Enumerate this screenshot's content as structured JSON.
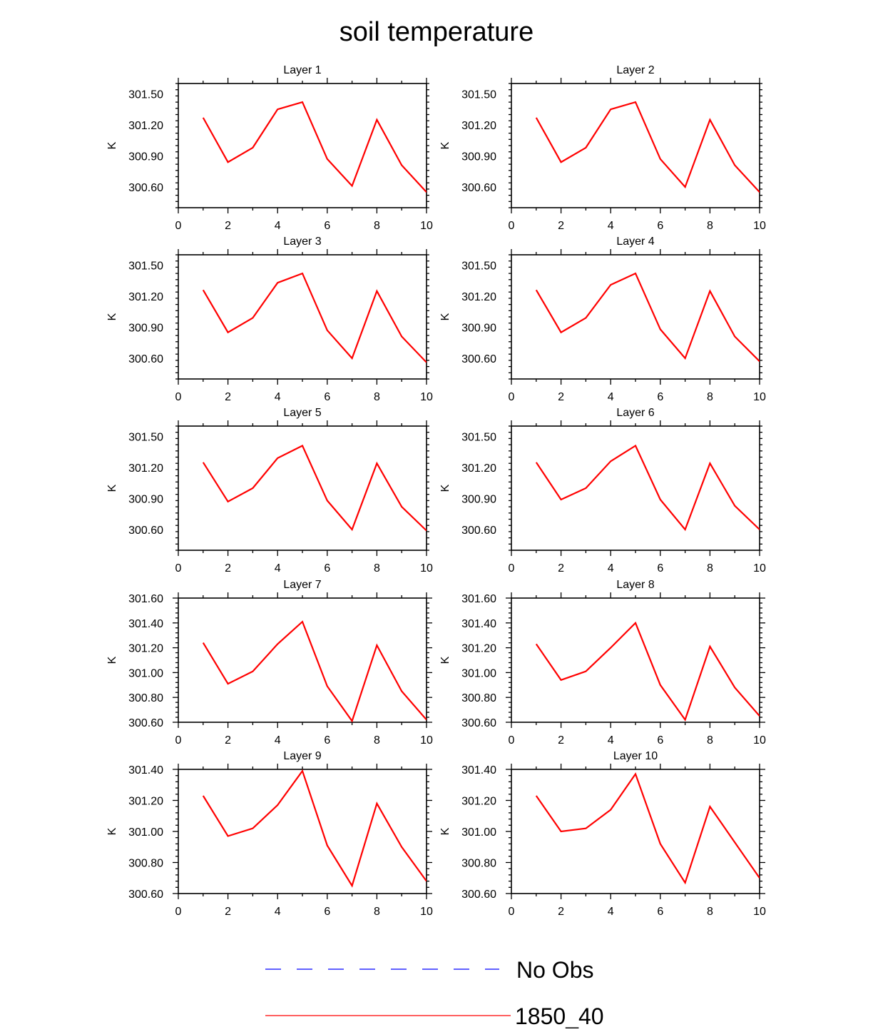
{
  "page_title": "soil temperature",
  "legend": [
    {
      "label": "No Obs",
      "color": "#0000ff",
      "dash": true
    },
    {
      "label": "1850_40",
      "color": "#ff0000",
      "dash": false
    }
  ],
  "chart_data": [
    {
      "type": "line",
      "title": "Layer 1",
      "ylabel": "K",
      "xlim": [
        0,
        10
      ],
      "ylim": [
        300.4,
        301.6
      ],
      "xticks": [
        0,
        2,
        4,
        6,
        8,
        10
      ],
      "yticks": [
        300.6,
        300.9,
        301.2,
        301.5
      ],
      "ytick_labels": [
        "300.60",
        "300.90",
        "301.20",
        "301.50"
      ],
      "series": [
        {
          "name": "1850_40",
          "color": "#ff0000",
          "x": [
            1,
            2,
            3,
            4,
            5,
            6,
            7,
            8,
            9,
            10
          ],
          "y": [
            301.27,
            300.84,
            300.98,
            301.35,
            301.42,
            300.87,
            300.61,
            301.25,
            300.81,
            300.55
          ]
        }
      ]
    },
    {
      "type": "line",
      "title": "Layer 2",
      "ylabel": "K",
      "xlim": [
        0,
        10
      ],
      "ylim": [
        300.4,
        301.6
      ],
      "xticks": [
        0,
        2,
        4,
        6,
        8,
        10
      ],
      "yticks": [
        300.6,
        300.9,
        301.2,
        301.5
      ],
      "ytick_labels": [
        "300.60",
        "300.90",
        "301.20",
        "301.50"
      ],
      "series": [
        {
          "name": "1850_40",
          "color": "#ff0000",
          "x": [
            1,
            2,
            3,
            4,
            5,
            6,
            7,
            8,
            9,
            10
          ],
          "y": [
            301.27,
            300.84,
            300.98,
            301.35,
            301.42,
            300.87,
            300.6,
            301.25,
            300.81,
            300.55
          ]
        }
      ]
    },
    {
      "type": "line",
      "title": "Layer 3",
      "ylabel": "K",
      "xlim": [
        0,
        10
      ],
      "ylim": [
        300.4,
        301.6
      ],
      "xticks": [
        0,
        2,
        4,
        6,
        8,
        10
      ],
      "yticks": [
        300.6,
        300.9,
        301.2,
        301.5
      ],
      "ytick_labels": [
        "300.60",
        "300.90",
        "301.20",
        "301.50"
      ],
      "series": [
        {
          "name": "1850_40",
          "color": "#ff0000",
          "x": [
            1,
            2,
            3,
            4,
            5,
            6,
            7,
            8,
            9,
            10
          ],
          "y": [
            301.26,
            300.85,
            300.99,
            301.33,
            301.42,
            300.87,
            300.6,
            301.25,
            300.81,
            300.56
          ]
        }
      ]
    },
    {
      "type": "line",
      "title": "Layer 4",
      "ylabel": "K",
      "xlim": [
        0,
        10
      ],
      "ylim": [
        300.4,
        301.6
      ],
      "xticks": [
        0,
        2,
        4,
        6,
        8,
        10
      ],
      "yticks": [
        300.6,
        300.9,
        301.2,
        301.5
      ],
      "ytick_labels": [
        "300.60",
        "300.90",
        "301.20",
        "301.50"
      ],
      "series": [
        {
          "name": "1850_40",
          "color": "#ff0000",
          "x": [
            1,
            2,
            3,
            4,
            5,
            6,
            7,
            8,
            9,
            10
          ],
          "y": [
            301.26,
            300.85,
            300.99,
            301.31,
            301.42,
            300.88,
            300.6,
            301.25,
            300.81,
            300.57
          ]
        }
      ]
    },
    {
      "type": "line",
      "title": "Layer 5",
      "ylabel": "K",
      "xlim": [
        0,
        10
      ],
      "ylim": [
        300.4,
        301.6
      ],
      "xticks": [
        0,
        2,
        4,
        6,
        8,
        10
      ],
      "yticks": [
        300.6,
        300.9,
        301.2,
        301.5
      ],
      "ytick_labels": [
        "300.60",
        "300.90",
        "301.20",
        "301.50"
      ],
      "series": [
        {
          "name": "1850_40",
          "color": "#ff0000",
          "x": [
            1,
            2,
            3,
            4,
            5,
            6,
            7,
            8,
            9,
            10
          ],
          "y": [
            301.25,
            300.87,
            301.0,
            301.29,
            301.41,
            300.88,
            300.6,
            301.24,
            300.82,
            300.59
          ]
        }
      ]
    },
    {
      "type": "line",
      "title": "Layer 6",
      "ylabel": "K",
      "xlim": [
        0,
        10
      ],
      "ylim": [
        300.4,
        301.6
      ],
      "xticks": [
        0,
        2,
        4,
        6,
        8,
        10
      ],
      "yticks": [
        300.6,
        300.9,
        301.2,
        301.5
      ],
      "ytick_labels": [
        "300.60",
        "300.90",
        "301.20",
        "301.50"
      ],
      "series": [
        {
          "name": "1850_40",
          "color": "#ff0000",
          "x": [
            1,
            2,
            3,
            4,
            5,
            6,
            7,
            8,
            9,
            10
          ],
          "y": [
            301.25,
            300.89,
            301.0,
            301.26,
            301.41,
            300.89,
            300.6,
            301.24,
            300.83,
            300.6
          ]
        }
      ]
    },
    {
      "type": "line",
      "title": "Layer 7",
      "ylabel": "K",
      "xlim": [
        0,
        10
      ],
      "ylim": [
        300.6,
        301.6
      ],
      "xticks": [
        0,
        2,
        4,
        6,
        8,
        10
      ],
      "yticks": [
        300.6,
        300.8,
        301.0,
        301.2,
        301.4,
        301.6
      ],
      "ytick_labels": [
        "300.60",
        "300.80",
        "301.00",
        "301.20",
        "301.40",
        "301.60"
      ],
      "series": [
        {
          "name": "1850_40",
          "color": "#ff0000",
          "x": [
            1,
            2,
            3,
            4,
            5,
            6,
            7,
            8,
            9,
            10
          ],
          "y": [
            301.24,
            300.91,
            301.01,
            301.23,
            301.41,
            300.89,
            300.61,
            301.22,
            300.85,
            300.62
          ]
        }
      ]
    },
    {
      "type": "line",
      "title": "Layer 8",
      "ylabel": "K",
      "xlim": [
        0,
        10
      ],
      "ylim": [
        300.6,
        301.6
      ],
      "xticks": [
        0,
        2,
        4,
        6,
        8,
        10
      ],
      "yticks": [
        300.6,
        300.8,
        301.0,
        301.2,
        301.4,
        301.6
      ],
      "ytick_labels": [
        "300.60",
        "300.80",
        "301.00",
        "301.20",
        "301.40",
        "301.60"
      ],
      "series": [
        {
          "name": "1850_40",
          "color": "#ff0000",
          "x": [
            1,
            2,
            3,
            4,
            5,
            6,
            7,
            8,
            9,
            10
          ],
          "y": [
            301.23,
            300.94,
            301.01,
            301.2,
            301.4,
            300.9,
            300.62,
            301.21,
            300.88,
            300.65
          ]
        }
      ]
    },
    {
      "type": "line",
      "title": "Layer 9",
      "ylabel": "K",
      "xlim": [
        0,
        10
      ],
      "ylim": [
        300.6,
        301.4
      ],
      "xticks": [
        0,
        2,
        4,
        6,
        8,
        10
      ],
      "yticks": [
        300.6,
        300.8,
        301.0,
        301.2,
        301.4
      ],
      "ytick_labels": [
        "300.60",
        "300.80",
        "301.00",
        "301.20",
        "301.40"
      ],
      "series": [
        {
          "name": "1850_40",
          "color": "#ff0000",
          "x": [
            1,
            2,
            3,
            4,
            5,
            6,
            7,
            8,
            9,
            10
          ],
          "y": [
            301.23,
            300.97,
            301.02,
            301.17,
            301.39,
            300.91,
            300.65,
            301.18,
            300.9,
            300.68
          ]
        }
      ]
    },
    {
      "type": "line",
      "title": "Layer 10",
      "ylabel": "K",
      "xlim": [
        0,
        10
      ],
      "ylim": [
        300.6,
        301.4
      ],
      "xticks": [
        0,
        2,
        4,
        6,
        8,
        10
      ],
      "yticks": [
        300.6,
        300.8,
        301.0,
        301.2,
        301.4
      ],
      "ytick_labels": [
        "300.60",
        "300.80",
        "301.00",
        "301.20",
        "301.40"
      ],
      "series": [
        {
          "name": "1850_40",
          "color": "#ff0000",
          "x": [
            1,
            2,
            3,
            4,
            5,
            6,
            7,
            8,
            9,
            10
          ],
          "y": [
            301.23,
            301.0,
            301.02,
            301.14,
            301.37,
            300.92,
            300.67,
            301.16,
            300.93,
            300.7
          ]
        }
      ]
    }
  ]
}
